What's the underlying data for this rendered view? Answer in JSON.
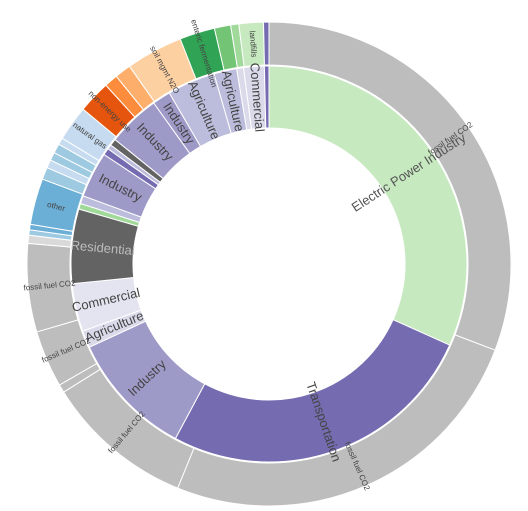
{
  "chart_data": {
    "type": "sunburst",
    "title": "",
    "center": "",
    "inner_ring": [
      {
        "label": "Electric Power Industry",
        "value": 34,
        "color": "#c7e9c0",
        "label_color": "#555555"
      },
      {
        "label": "Transportation",
        "value": 28,
        "color": "#756bb1",
        "label_color": "#444444"
      },
      {
        "label": "Industry",
        "value": 11,
        "color": "#9e9ac8",
        "label_color": "#444444"
      },
      {
        "label": "Agriculture",
        "value": 1.5,
        "color": "#dadaeb",
        "label_color": "#444444"
      },
      {
        "label": "Commercial",
        "value": 4.2,
        "color": "#e4e3f0",
        "label_color": "#444444"
      },
      {
        "label": "Residential",
        "value": 6.5,
        "color": "#636363",
        "label_color": "#bdbdbd"
      },
      {
        "label": "",
        "value": 0.5,
        "color": "#a1d99b",
        "label_color": "#444444"
      },
      {
        "label": "",
        "value": 0.7,
        "color": "#bcbddc",
        "label_color": "#444444"
      },
      {
        "label": "Industry",
        "value": 4.0,
        "color": "#9e9ac8",
        "label_color": "#444444"
      },
      {
        "label": "",
        "value": 0.6,
        "color": "#756bb1",
        "label_color": "#444444"
      },
      {
        "label": "",
        "value": 0.4,
        "color": "#bcbddc",
        "label_color": "#444444"
      },
      {
        "label": "",
        "value": 0.6,
        "color": "#636363",
        "label_color": "#444444"
      },
      {
        "label": "Industry",
        "value": 4.6,
        "color": "#9e9ac8",
        "label_color": "#444444"
      },
      {
        "label": "Industry",
        "value": 1.6,
        "color": "#9e9ac8",
        "label_color": "#444444"
      },
      {
        "label": "Agriculture",
        "value": 4.2,
        "color": "#bcbddc",
        "label_color": "#444444"
      },
      {
        "label": "Agriculture",
        "value": 2.0,
        "color": "#bcbddc",
        "label_color": "#444444"
      },
      {
        "label": "",
        "value": 0.6,
        "color": "#dadaeb",
        "label_color": "#444444"
      },
      {
        "label": "Commercial",
        "value": 1.8,
        "color": "#dadaeb",
        "label_color": "#444444"
      },
      {
        "label": "",
        "value": 0.4,
        "color": "#756bb1",
        "label_color": "#444444"
      }
    ],
    "outer_ring": [
      {
        "label": "fossil fuel CO2",
        "value": 34,
        "color": "#bdbdbd"
      },
      {
        "label": "fossil fuel CO2",
        "value": 28,
        "color": "#bdbdbd"
      },
      {
        "label": "fossil fuel CO2",
        "value": 11,
        "color": "#bdbdbd"
      },
      {
        "label": "",
        "value": 0.6,
        "color": "#bdbdbd"
      },
      {
        "label": "fossil fuel CO2",
        "value": 4.2,
        "color": "#bdbdbd"
      },
      {
        "label": "fossil fuel CO2",
        "value": 6.5,
        "color": "#bdbdbd"
      },
      {
        "label": "",
        "value": 0.6,
        "color": "#d9d9d9"
      },
      {
        "label": "",
        "value": 0.4,
        "color": "#9ecae1"
      },
      {
        "label": "",
        "value": 0.4,
        "color": "#6baed6"
      },
      {
        "label": "other",
        "value": 3.4,
        "color": "#6baed6"
      },
      {
        "label": "",
        "value": 0.9,
        "color": "#9ecae1"
      },
      {
        "label": "",
        "value": 0.6,
        "color": "#c6dbef"
      },
      {
        "label": "",
        "value": 0.6,
        "color": "#9ecae1"
      },
      {
        "label": "",
        "value": 0.7,
        "color": "#9ecae1"
      },
      {
        "label": "",
        "value": 0.5,
        "color": "#c6dbef"
      },
      {
        "label": "natural gas",
        "value": 2.6,
        "color": "#c6dbef"
      },
      {
        "label": "non-energy use",
        "value": 2.4,
        "color": "#e6550d"
      },
      {
        "label": "",
        "value": 1.0,
        "color": "#fd8d3c"
      },
      {
        "label": "",
        "value": 1.2,
        "color": "#fdae6b"
      },
      {
        "label": "soil mgmt N2O",
        "value": 4.2,
        "color": "#fdd0a2"
      },
      {
        "label": "enteric fermentation",
        "value": 2.6,
        "color": "#31a354"
      },
      {
        "label": "",
        "value": 1.2,
        "color": "#74c476"
      },
      {
        "label": "",
        "value": 0.6,
        "color": "#a1d99b"
      },
      {
        "label": "landfills",
        "value": 1.8,
        "color": "#c7e9c0"
      },
      {
        "label": "",
        "value": 0.4,
        "color": "#756bb1"
      }
    ]
  }
}
